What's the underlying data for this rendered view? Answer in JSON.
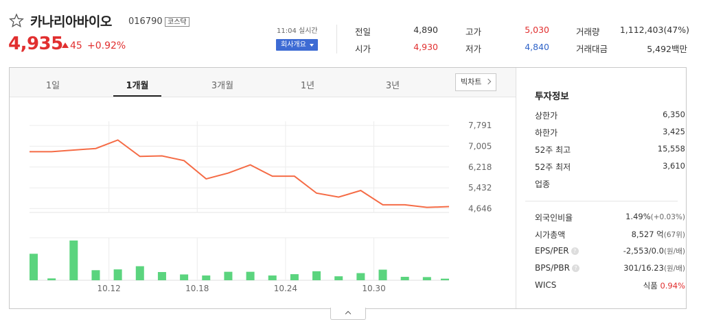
{
  "stock": {
    "name": "카나리아바이오",
    "code": "016790",
    "market": "코스닥",
    "price": "4,935",
    "change": "45",
    "change_pct": "+0.92%",
    "realtime": "11:04 실시간",
    "company_btn": "회사개요"
  },
  "quotes": {
    "prev_label": "전일",
    "prev_value": "4,890",
    "open_label": "시가",
    "open_value": "4,930",
    "high_label": "고가",
    "high_value": "5,030",
    "low_label": "저가",
    "low_value": "4,840",
    "volume_label": "거래량",
    "volume_value": "1,112,403(47%)",
    "amount_label": "거래대금",
    "amount_value": "5,492백만"
  },
  "tabs": [
    "1일",
    "1개월",
    "3개월",
    "1년",
    "3년"
  ],
  "active_tab": "1개월",
  "big_chart_btn": "빅차트",
  "chart_data": {
    "type": "line",
    "x_ticks": [
      "10.12",
      "10.18",
      "10.24",
      "10.30"
    ],
    "y_ticks": [
      7791,
      7005,
      6218,
      5432,
      4646
    ],
    "y_tick_labels": [
      "7,791",
      "7,005",
      "6,218",
      "5,432",
      "4,646"
    ],
    "ylim": [
      4500,
      7950
    ],
    "price_values": [
      6800,
      6800,
      6860,
      6920,
      7240,
      6620,
      6640,
      6460,
      5770,
      5990,
      6300,
      5870,
      5870,
      5230,
      5080,
      5330,
      4790,
      4790,
      4690,
      4720
    ],
    "volume_values": [
      100,
      7,
      150,
      38,
      41,
      53,
      31,
      22,
      18,
      32,
      32,
      18,
      23,
      34,
      15,
      27,
      40,
      13,
      12,
      6
    ],
    "line_color": "#f56b45",
    "bar_color": "#5bd47e"
  },
  "info": {
    "title": "투자정보",
    "upper_label": "상한가",
    "upper_value": "6,350",
    "lower_label": "하한가",
    "lower_value": "3,425",
    "high52_label": "52주 최고",
    "high52_value": "15,558",
    "low52_label": "52주 최저",
    "low52_value": "3,610",
    "sector_label": "업종",
    "foreign_label": "외국인비율",
    "foreign_value": "1.49%",
    "foreign_change": "(+0.03%)",
    "mcap_label": "시가총액",
    "mcap_value": "8,527 억",
    "mcap_rank": "(67위)",
    "eps_label": "EPS/PER",
    "eps_value": "-2,553/0.0",
    "eps_unit": "(원/배)",
    "bps_label": "BPS/PBR",
    "bps_value": "301/16.23",
    "bps_unit": "(원/배)",
    "wics_label": "WICS",
    "wics_value": "식품",
    "wics_change": "0.94%"
  }
}
